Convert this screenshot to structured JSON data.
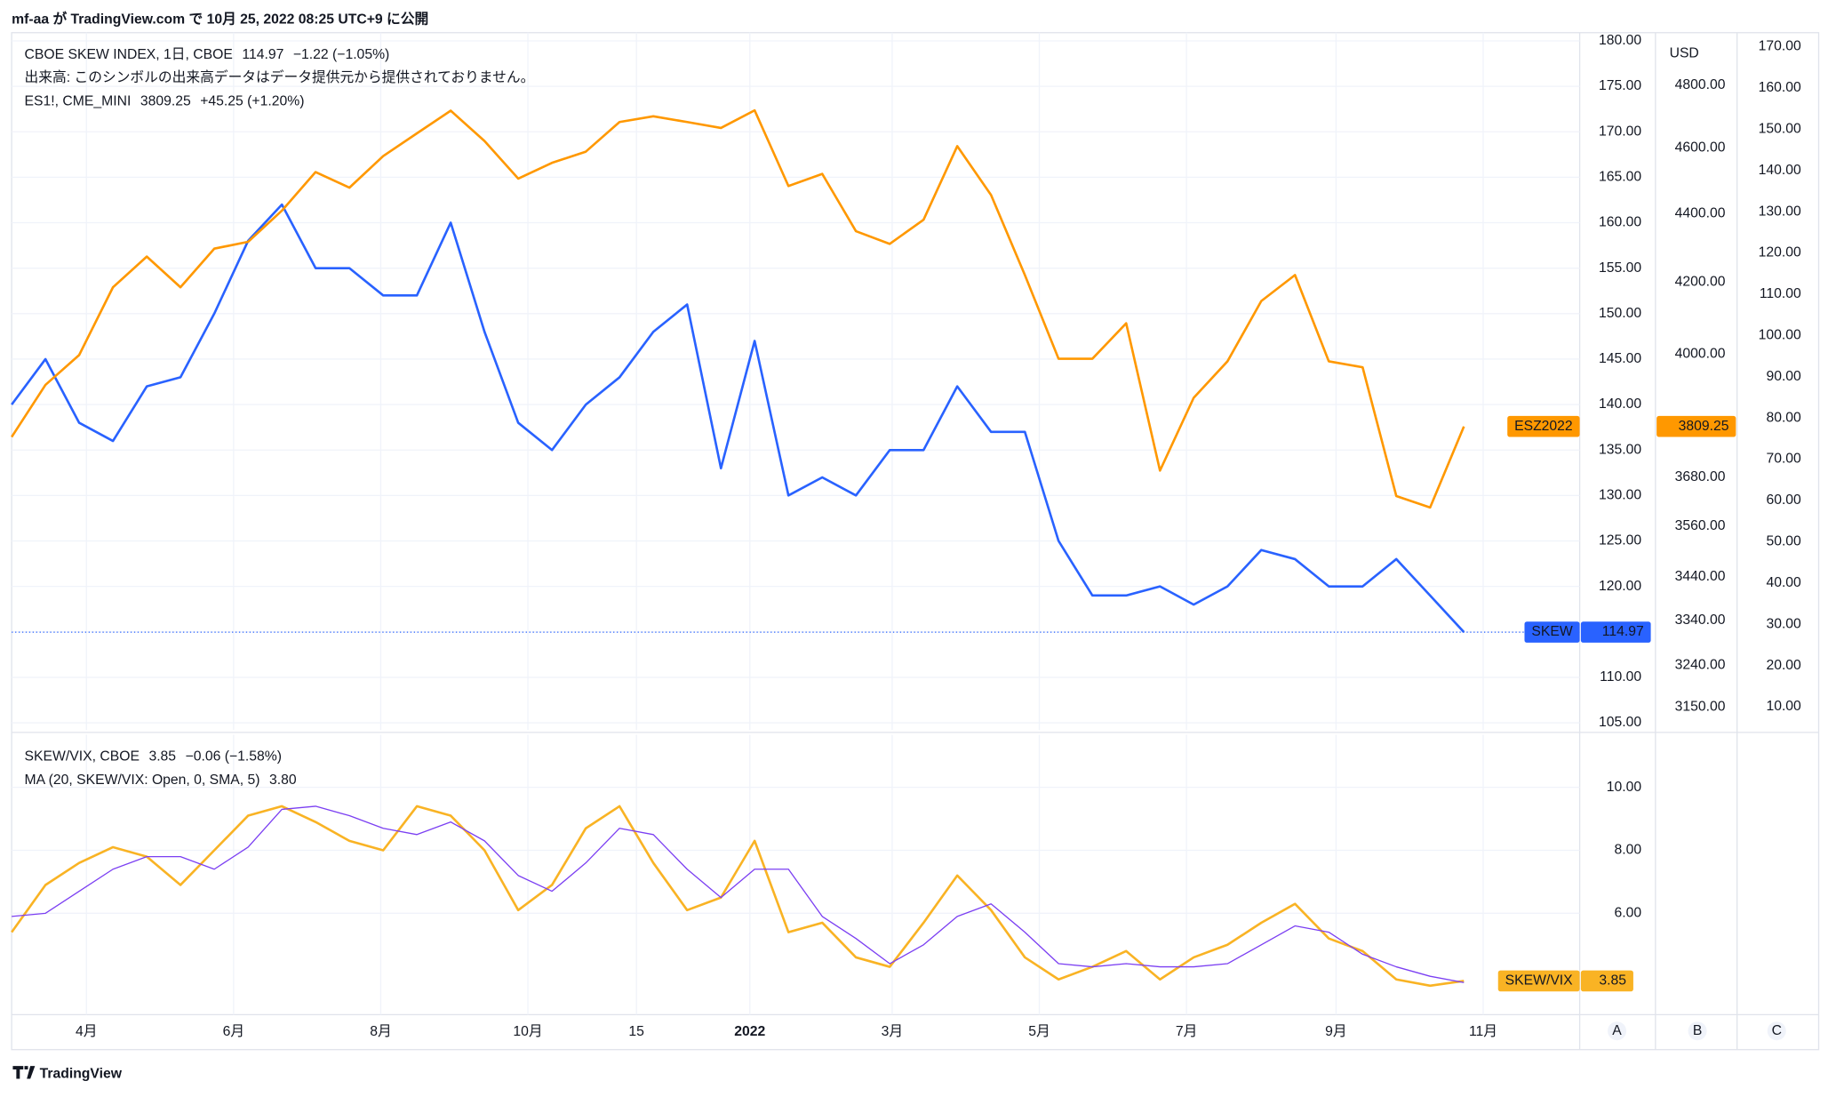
{
  "header": "mf-aa が TradingView.com で 10月 25, 2022 08:25 UTC+9 に公開",
  "footer": "TradingView",
  "chart_data": {
    "type": "line",
    "axis_names": [
      "A",
      "B",
      "C"
    ],
    "x": [
      0,
      14,
      28,
      42,
      56,
      70,
      84,
      98,
      112,
      126,
      140,
      154,
      168,
      182,
      196,
      210,
      224,
      238,
      252,
      266,
      280,
      294,
      308,
      322,
      336,
      350,
      364,
      378,
      392,
      406,
      420,
      434,
      448,
      462,
      476,
      490,
      504,
      518,
      532,
      546,
      560,
      574,
      588,
      602
    ],
    "xlim": [
      0,
      650
    ],
    "xticks": [
      {
        "value": 31,
        "label": "4月"
      },
      {
        "value": 92,
        "label": "6月"
      },
      {
        "value": 153,
        "label": "8月"
      },
      {
        "value": 214,
        "label": "10月"
      },
      {
        "value": 259,
        "label": "15"
      },
      {
        "value": 306,
        "label": "2022"
      },
      {
        "value": 365,
        "label": "3月"
      },
      {
        "value": 426,
        "label": "5月"
      },
      {
        "value": 487,
        "label": "7月"
      },
      {
        "value": 549,
        "label": "9月"
      },
      {
        "value": 610,
        "label": "11月"
      }
    ],
    "panes": [
      {
        "ylim": [
          104.2,
          180.9
        ],
        "yticks": [
          {
            "value": 105,
            "label": "105.00"
          },
          {
            "value": 110,
            "label": "110.00"
          },
          {
            "value": 115,
            "label": "115.00"
          },
          {
            "value": 120,
            "label": "120.00"
          },
          {
            "value": 125,
            "label": "125.00"
          },
          {
            "value": 130,
            "label": "130.00"
          },
          {
            "value": 135,
            "label": "135.00"
          },
          {
            "value": 140,
            "label": "140.00"
          },
          {
            "value": 145,
            "label": "145.00"
          },
          {
            "value": 150,
            "label": "150.00"
          },
          {
            "value": 155,
            "label": "155.00"
          },
          {
            "value": 160,
            "label": "160.00"
          },
          {
            "value": 165,
            "label": "165.00"
          },
          {
            "value": 170,
            "label": "170.00"
          },
          {
            "value": 175,
            "label": "175.00"
          },
          {
            "value": 180,
            "label": "180.00"
          }
        ],
        "y2lim": [
          3101,
          4974
        ],
        "y2_log": true,
        "y2_unit": "USD",
        "y2ticks": [
          {
            "value": 3150,
            "label": "3150.00"
          },
          {
            "value": 3240,
            "label": "3240.00"
          },
          {
            "value": 3340,
            "label": "3340.00"
          },
          {
            "value": 3440,
            "label": "3440.00"
          },
          {
            "value": 3560,
            "label": "3560.00"
          },
          {
            "value": 3680,
            "label": "3680.00"
          },
          {
            "value": 4000,
            "label": "4000.00"
          },
          {
            "value": 4200,
            "label": "4200.00"
          },
          {
            "value": 4400,
            "label": "4400.00"
          },
          {
            "value": 4600,
            "label": "4600.00"
          },
          {
            "value": 4800,
            "label": "4800.00"
          }
        ],
        "y3lim": [
          4.35,
          173.4
        ],
        "y3ticks": [
          {
            "value": 10,
            "label": "10.00"
          },
          {
            "value": 20,
            "label": "20.00"
          },
          {
            "value": 30,
            "label": "30.00"
          },
          {
            "value": 40,
            "label": "40.00"
          },
          {
            "value": 50,
            "label": "50.00"
          },
          {
            "value": 60,
            "label": "60.00"
          },
          {
            "value": 70,
            "label": "70.00"
          },
          {
            "value": 80,
            "label": "80.00"
          },
          {
            "value": 90,
            "label": "90.00"
          },
          {
            "value": 100,
            "label": "100.00"
          },
          {
            "value": 110,
            "label": "110.00"
          },
          {
            "value": 120,
            "label": "120.00"
          },
          {
            "value": 130,
            "label": "130.00"
          },
          {
            "value": 140,
            "label": "140.00"
          },
          {
            "value": 150,
            "label": "150.00"
          },
          {
            "value": 160,
            "label": "160.00"
          },
          {
            "value": 170,
            "label": "170.00"
          }
        ],
        "note": "出来高: このシンボルの出来高データはデータ提供元から提供されておりません。",
        "series": [
          {
            "name": "CBOE SKEW INDEX, 1日, CBOE",
            "color": "#2962ff",
            "tag": "SKEW",
            "change": "−1.22 (−1.05%)",
            "values": [
              140,
              145,
              138,
              136,
              142,
              143,
              150,
              158,
              162,
              155,
              155,
              152,
              152,
              160,
              148,
              138,
              135,
              140,
              143,
              148,
              151,
              133,
              147,
              130,
              132,
              130,
              135,
              135,
              142,
              137,
              137,
              125,
              119,
              119,
              120,
              118,
              120,
              124,
              123,
              120,
              120,
              123,
              119,
              114.97
            ]
          },
          {
            "name": "ES1!, CME_MINI",
            "color": "#ff9800",
            "axis": "y2",
            "tag": "ESZ2022",
            "change": "+45.25 (+1.20%)",
            "values": [
              3782,
              3918,
              3998,
              4186,
              4274,
              4186,
              4297,
              4317,
              4409,
              4526,
              4478,
              4575,
              4646,
              4718,
              4622,
              4506,
              4554,
              4589,
              4682,
              4700,
              4682,
              4663,
              4719,
              4483,
              4520,
              4348,
              4311,
              4382,
              4606,
              4456,
              4221,
              3988,
              3988,
              4085,
              3697,
              3884,
              3981,
              4147,
              4221,
              3981,
              3965,
              3634,
              3606,
              3809.25
            ]
          }
        ]
      },
      {
        "ylim": [
          2.78,
          11.67
        ],
        "yticks": [
          {
            "value": 6,
            "label": "6.00"
          },
          {
            "value": 8,
            "label": "8.00"
          },
          {
            "value": 10,
            "label": "10.00"
          }
        ],
        "series": [
          {
            "name": "SKEW/VIX, CBOE",
            "color": "#f9b324",
            "tag": "SKEW/VIX",
            "change": "−0.06 (−1.58%)",
            "values": [
              5.4,
              6.9,
              7.6,
              8.1,
              7.8,
              6.9,
              8.0,
              9.1,
              9.4,
              8.9,
              8.3,
              8.0,
              9.4,
              9.1,
              8.0,
              6.1,
              6.9,
              8.7,
              9.4,
              7.6,
              6.1,
              6.5,
              8.3,
              5.4,
              5.7,
              4.6,
              4.3,
              5.7,
              7.2,
              6.1,
              4.6,
              3.9,
              4.3,
              4.8,
              3.9,
              4.6,
              5.0,
              5.7,
              6.3,
              5.2,
              4.8,
              3.9,
              3.7,
              3.85
            ]
          },
          {
            "name": "MA (20, SKEW/VIX: Open, 0, SMA, 5)",
            "color": "#7b3ff2",
            "last_label": "3.80",
            "values": [
              5.9,
              6.0,
              6.7,
              7.4,
              7.8,
              7.8,
              7.4,
              8.1,
              9.3,
              9.4,
              9.1,
              8.7,
              8.5,
              8.9,
              8.3,
              7.2,
              6.7,
              7.6,
              8.7,
              8.5,
              7.4,
              6.5,
              7.4,
              7.4,
              5.9,
              5.2,
              4.4,
              5.0,
              5.9,
              6.3,
              5.4,
              4.4,
              4.3,
              4.4,
              4.3,
              4.3,
              4.4,
              5.0,
              5.6,
              5.4,
              4.7,
              4.3,
              4.0,
              3.8
            ]
          }
        ]
      }
    ]
  }
}
